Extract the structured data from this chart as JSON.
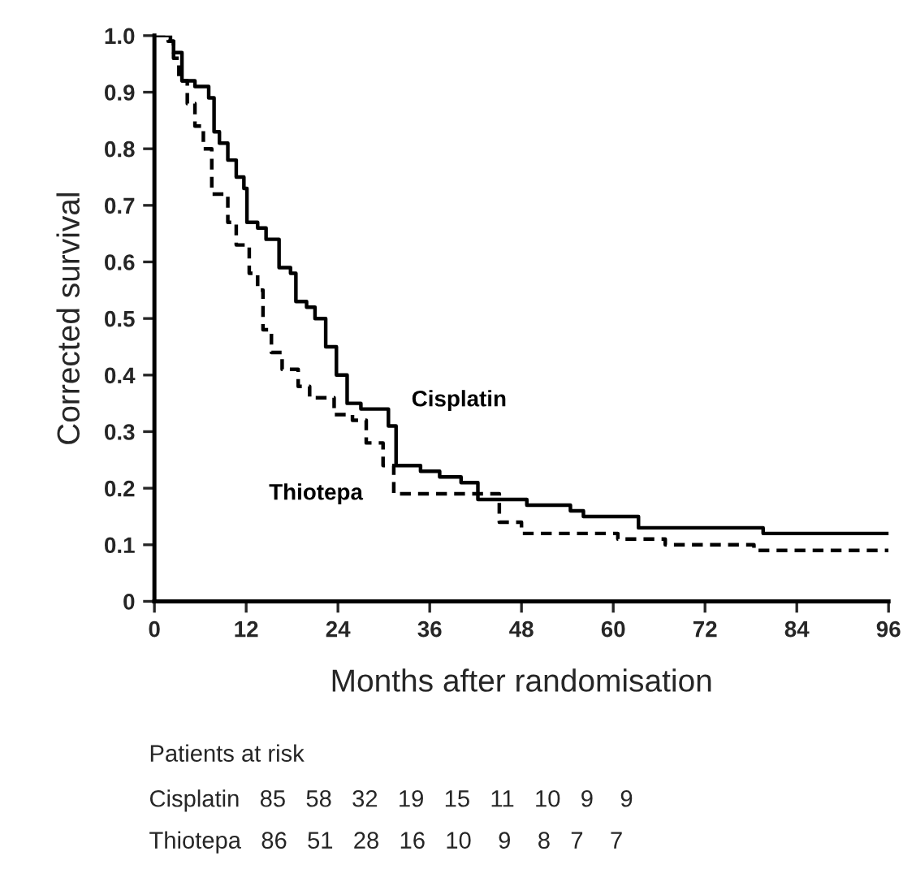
{
  "chart_data": {
    "type": "step",
    "xlabel": "Months after randomisation",
    "ylabel": "Corrected survival",
    "xlim": [
      0,
      96
    ],
    "xticks": [
      0,
      12,
      24,
      36,
      48,
      60,
      72,
      84,
      96
    ],
    "ylim": [
      0,
      1.0
    ],
    "yticks": [
      0,
      0.1,
      0.2,
      0.3,
      0.4,
      0.5,
      0.6,
      0.7,
      0.8,
      0.9,
      {
        "value": 1.0,
        "label": "1.0"
      }
    ],
    "grid": false,
    "legend": false,
    "series": [
      {
        "name": "Cisplatin",
        "color": "#000000",
        "line_style": "solid",
        "x": [
          0,
          2.1,
          2.5,
          3.6,
          5.3,
          7.1,
          7.8,
          8.5,
          9.6,
          10.7,
          11.7,
          12.1,
          13.5,
          14.6,
          16.3,
          17.8,
          18.5,
          19.9,
          21,
          22.4,
          23.8,
          25.2,
          27,
          30.6,
          31.6,
          34.8,
          37.3,
          40.1,
          42.3,
          48.7,
          54.4,
          56.1,
          63.3,
          79.6,
          96
        ],
        "values": [
          1.0,
          0.99,
          0.97,
          0.92,
          0.91,
          0.89,
          0.83,
          0.81,
          0.78,
          0.75,
          0.73,
          0.67,
          0.66,
          0.64,
          0.59,
          0.58,
          0.53,
          0.52,
          0.5,
          0.45,
          0.4,
          0.35,
          0.34,
          0.31,
          0.24,
          0.23,
          0.22,
          0.21,
          0.18,
          0.17,
          0.16,
          0.15,
          0.13,
          0.12,
          0.12
        ]
      },
      {
        "name": "Thiotepa",
        "color": "#000000",
        "line_style": "dashed",
        "x": [
          0,
          1.8,
          2.5,
          3.2,
          4.3,
          5.3,
          6.4,
          7.5,
          9.6,
          10.7,
          12.4,
          13.5,
          14.2,
          15.3,
          16.7,
          18.8,
          20.3,
          23.5,
          25.9,
          27.7,
          29.9,
          31.3,
          45.1,
          48,
          60.6,
          66.8,
          78.4,
          96
        ],
        "values": [
          1.0,
          0.99,
          0.96,
          0.92,
          0.88,
          0.84,
          0.8,
          0.72,
          0.67,
          0.63,
          0.58,
          0.55,
          0.48,
          0.44,
          0.41,
          0.38,
          0.36,
          0.33,
          0.32,
          0.28,
          0.24,
          0.19,
          0.14,
          0.12,
          0.11,
          0.1,
          0.09,
          0.09
        ]
      }
    ],
    "annotations": [
      "Patients at risk",
      "Cisplatin   85   58   32   19   15   11   10   9    9",
      "Thiotepa   86   51   28   16   10    9    8   7    7"
    ]
  }
}
